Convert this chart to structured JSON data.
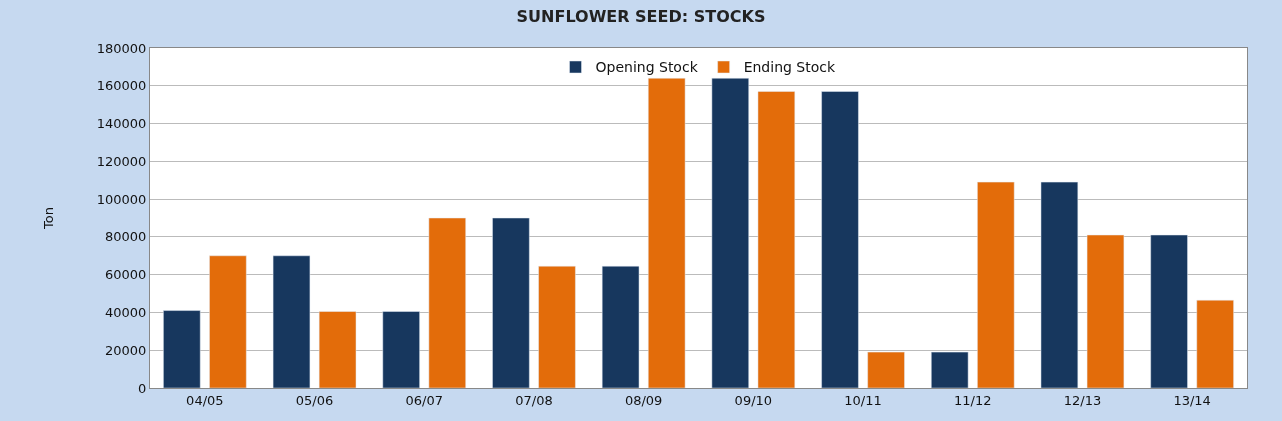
{
  "chart_data": {
    "type": "bar",
    "title": "SUNFLOWER SEED: STOCKS",
    "ylabel": "Ton",
    "categories": [
      "04/05",
      "05/06",
      "06/07",
      "07/08",
      "08/09",
      "09/10",
      "10/11",
      "11/12",
      "12/13",
      "13/14"
    ],
    "series": [
      {
        "name": "Opening Stock",
        "color": "#17375e",
        "values": [
          41000,
          70000,
          40500,
          90000,
          64500,
          164000,
          157000,
          19000,
          109000,
          81000
        ]
      },
      {
        "name": "Ending Stock",
        "color": "#e36c0a",
        "values": [
          70000,
          40500,
          90000,
          64500,
          164000,
          157000,
          19000,
          109000,
          81000,
          46500
        ]
      }
    ],
    "ylim": [
      0,
      180000
    ],
    "yticks": [
      0,
      20000,
      40000,
      60000,
      80000,
      100000,
      120000,
      140000,
      160000,
      180000
    ],
    "grid": "y",
    "legend": "top"
  }
}
